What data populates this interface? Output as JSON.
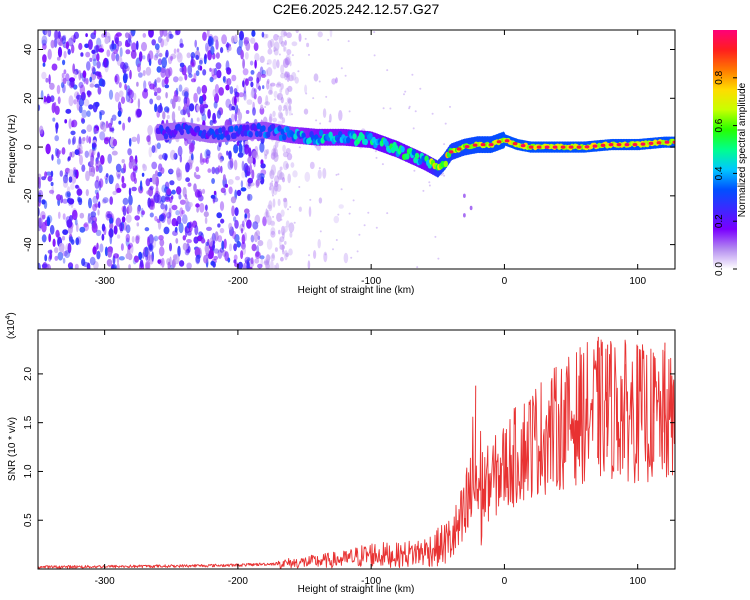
{
  "title": "C2E6.2025.242.12.57.G27",
  "chart_data": [
    {
      "type": "heatmap",
      "name": "spectrogram",
      "xlabel": "Height of straight line (km)",
      "ylabel": "Frequency (Hz)",
      "xlim": [
        -350,
        128
      ],
      "ylim": [
        -50,
        48
      ],
      "xticks": [
        -300,
        -200,
        -100,
        0,
        100
      ],
      "xtick_labels": [
        "-300",
        "-200",
        "-100",
        "0",
        "100"
      ],
      "yticks": [
        -40,
        -20,
        0,
        20,
        40
      ],
      "ytick_labels": [
        "-40",
        "-20",
        "0",
        "20",
        "40"
      ],
      "colorbar": {
        "label": "Normalized spectral amplitude",
        "range": [
          0.0,
          1.0
        ],
        "ticks": [
          0.0,
          0.2,
          0.4,
          0.6,
          0.8
        ],
        "tick_labels": [
          "0.0",
          "0.2",
          "0.4",
          "0.6",
          "0.8"
        ],
        "colors": [
          "#ffffff",
          "#b48cf0",
          "#7a00ff",
          "#3c28ff",
          "#0050ff",
          "#00c8ff",
          "#00ff8c",
          "#28ff00",
          "#c8ff00",
          "#ffdc00",
          "#ff7800",
          "#ff1e1e",
          "#ff0078"
        ]
      },
      "ridge": {
        "x": [
          -260,
          -240,
          -220,
          -200,
          -180,
          -160,
          -140,
          -120,
          -100,
          -80,
          -60,
          -50,
          -45,
          -40,
          -30,
          -20,
          -10,
          0,
          10,
          20,
          40,
          60,
          80,
          100,
          120,
          128
        ],
        "freq": [
          6,
          7,
          5,
          6,
          7,
          5,
          4,
          4,
          3,
          -1,
          -6,
          -9,
          -6,
          -2,
          0,
          1,
          1,
          3,
          1,
          0,
          0,
          0,
          1,
          1,
          2,
          2
        ],
        "amplitude": [
          0.3,
          0.3,
          0.3,
          0.32,
          0.35,
          0.4,
          0.45,
          0.45,
          0.5,
          0.55,
          0.5,
          0.8,
          0.9,
          0.85,
          0.9,
          0.92,
          0.92,
          0.95,
          0.95,
          0.95,
          0.95,
          0.95,
          0.95,
          0.95,
          0.95,
          0.95
        ]
      },
      "noise_region_x": [
        -350,
        -160
      ],
      "tail_points": [
        [
          -30,
          -20
        ],
        [
          -25,
          -25
        ],
        [
          -30,
          -28
        ]
      ]
    },
    {
      "type": "line",
      "name": "snr",
      "xlabel": "Height of straight line (km)",
      "ylabel": "SNR (10 * v/v)",
      "multiplier_label": "(x10",
      "multiplier_exp": "4",
      "multiplier_close": ")",
      "xlim": [
        -350,
        128
      ],
      "ylim": [
        0,
        2.45
      ],
      "xticks": [
        -300,
        -200,
        -100,
        0,
        100
      ],
      "xtick_labels": [
        "-300",
        "-200",
        "-100",
        "0",
        "100"
      ],
      "yticks": [
        0.5,
        1.0,
        1.5,
        2.0
      ],
      "ytick_labels": [
        "0.5",
        "1.0",
        "1.5",
        "2.0"
      ],
      "color": "#e83232",
      "envelope": {
        "x": [
          -350,
          -250,
          -200,
          -160,
          -120,
          -100,
          -80,
          -60,
          -50,
          -40,
          -30,
          -25,
          -22,
          -20,
          -10,
          0,
          20,
          40,
          60,
          80,
          100,
          120,
          128
        ],
        "y": [
          0.02,
          0.03,
          0.04,
          0.06,
          0.1,
          0.15,
          0.14,
          0.18,
          0.22,
          0.3,
          0.5,
          0.8,
          1.0,
          0.8,
          0.9,
          1.05,
          1.3,
          1.45,
          1.6,
          1.65,
          1.6,
          1.55,
          1.5
        ]
      },
      "spikes": [
        [
          -22,
          1.88
        ],
        [
          70,
          2.38
        ],
        [
          77,
          2.3
        ],
        [
          99,
          2.3
        ],
        [
          120,
          2.32
        ],
        [
          90,
          2.1
        ],
        [
          112,
          2.18
        ]
      ]
    }
  ]
}
